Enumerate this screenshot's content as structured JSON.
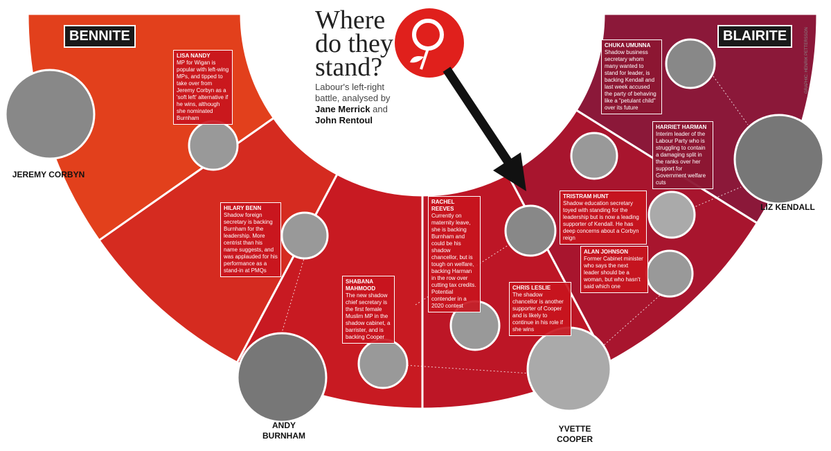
{
  "title": "Where do they stand?",
  "subtitle": "Labour's left-right battle, analysed",
  "byline": {
    "by": "by",
    "author1": "Jane Merrick",
    "and": "and",
    "author2": "John Rentoul"
  },
  "credit": "GRAPHIC: HENRIK PETTERSSON",
  "labels": {
    "left": "BENNITE",
    "right": "BLAIRITE"
  },
  "candidates": [
    {
      "name": [
        "JEREMY CORBYN"
      ]
    },
    {
      "name": [
        "ANDY",
        "BURNHAM"
      ]
    },
    {
      "name": [
        "YVETTE",
        "COOPER"
      ]
    },
    {
      "name": [
        "LIZ KENDALL"
      ]
    }
  ],
  "people": [
    {
      "name": "LISA NANDY",
      "text": "MP for Wigan is popular with left-wing MPs, and tipped to take over from Jeremy Corbyn as a 'soft left' alternative if he wins, although she nominated Burnham"
    },
    {
      "name": "HILARY BENN",
      "text": "Shadow foreign secretary is backing Burnham for the leadership. More centrist than his name suggests, and was applauded for his performance as a stand-in at PMQs"
    },
    {
      "name": "SHABANA MAHMOOD",
      "text": "The new shadow chief secretary is the first female Muslim MP in the shadow cabinet, a barrister, and is backing Cooper"
    },
    {
      "name": "RACHEL REEVES",
      "text": "Currently on maternity leave, she is backing Burnham and could be his shadow chancellor, but is tough on welfare, backing Harman in the row over cutting tax credits. Potential contender in a 2020 contest"
    },
    {
      "name": "CHRIS LESLIE",
      "text": "The shadow chancellor is another supporter of Cooper and is likely to continue in his role if she wins"
    },
    {
      "name": "CHUKA UMUNNA",
      "text": "Shadow business secretary whom many wanted to stand for leader, is backing Kendall and last week accused the party of behaving like a \"petulant child\" over its future"
    },
    {
      "name": "HARRIET HARMAN",
      "text": "Interim leader of the Labour Party who is struggling to contain a damaging split in the ranks over her support for Government welfare cuts"
    },
    {
      "name": "TRISTRAM HUNT",
      "text": "Shadow education secretary toyed with standing for the leadership but is now a leading supporter of Kendall. He has deep concerns about a Corbyn reign"
    },
    {
      "name": "ALAN JOHNSON",
      "text": "Former Cabinet minister who says the next leader should be a woman, but who hasn't said which one"
    }
  ]
}
